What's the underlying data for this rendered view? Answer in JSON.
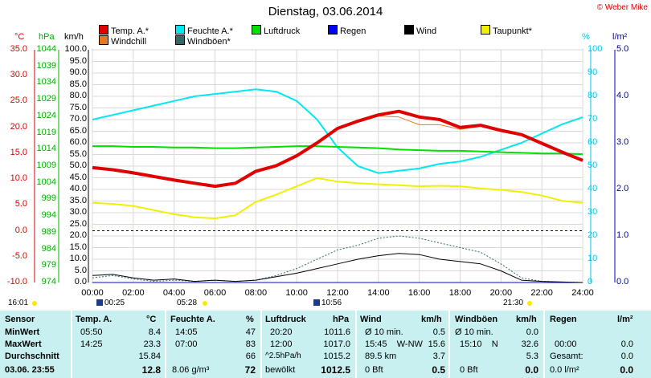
{
  "header": {
    "title": "Dienstag, 03.06.2014",
    "copyright": "© Weber Mike"
  },
  "legend": [
    {
      "label": "Temp. A.*",
      "color": "#e00000"
    },
    {
      "label": "Feuchte A.*",
      "color": "#00e8f0"
    },
    {
      "label": "Luftdruck",
      "color": "#00e000"
    },
    {
      "label": "Regen",
      "color": "#0000ff"
    },
    {
      "label": "Wind",
      "color": "#000000"
    },
    {
      "label": "Taupunkt*",
      "color": "#f0f000"
    },
    {
      "label": "Windchill",
      "color": "#e87820"
    },
    {
      "label": "Windböen*",
      "color": "#306868"
    }
  ],
  "units": {
    "c": "°C",
    "hpa": "hPa",
    "kmh": "km/h",
    "pct": "%",
    "lm": "l/m²"
  },
  "axes": {
    "celsius": [
      "35.0",
      "30.0",
      "25.0",
      "20.0",
      "15.0",
      "10.0",
      "5.0",
      "0.0",
      "-5.0",
      "-10.0"
    ],
    "hpa": [
      "1044",
      "1039",
      "1034",
      "1029",
      "1024",
      "1019",
      "1014",
      "1009",
      "1004",
      "999",
      "994",
      "989",
      "984",
      "979",
      "974"
    ],
    "kmh": [
      "100.0",
      "95.0",
      "90.0",
      "85.0",
      "80.0",
      "75.0",
      "70.0",
      "65.0",
      "60.0",
      "55.0",
      "50.0",
      "45.0",
      "40.0",
      "35.0",
      "30.0",
      "25.0",
      "20.0",
      "15.0",
      "10.0",
      "5.0",
      "0.0"
    ],
    "pct": [
      "100",
      "90",
      "80",
      "70",
      "60",
      "50",
      "40",
      "30",
      "20",
      "10",
      "0"
    ],
    "lm": [
      "5.0",
      "4.0",
      "3.0",
      "2.0",
      "1.0",
      "0.0"
    ],
    "x": [
      "00:00",
      "02:00",
      "04:00",
      "06:00",
      "08:00",
      "10:00",
      "12:00",
      "14:00",
      "16:00",
      "18:00",
      "20:00",
      "22:00",
      "24:00"
    ]
  },
  "sun": {
    "moonset": "16:01",
    "sunrise_icon_time": "00:25",
    "sunrise": "05:28",
    "moonrise": "10:56",
    "sunset": "21:30"
  },
  "chart_data": {
    "type": "line",
    "title": "Dienstag, 03.06.2014",
    "x": [
      0,
      1,
      2,
      3,
      4,
      5,
      6,
      7,
      8,
      9,
      10,
      11,
      12,
      13,
      14,
      15,
      16,
      17,
      18,
      19,
      20,
      21,
      22,
      23,
      24
    ],
    "xlabel": "",
    "xlim": [
      0,
      24
    ],
    "series": [
      {
        "name": "Temp. A.*",
        "axis": "celsius",
        "values": [
          12.2,
          11.8,
          11.2,
          10.5,
          9.8,
          9.2,
          8.6,
          9.2,
          11.5,
          12.6,
          14.5,
          17.0,
          19.8,
          21.2,
          22.4,
          23.1,
          22.0,
          21.5,
          20.0,
          20.4,
          19.4,
          18.6,
          16.9,
          15.2,
          13.6
        ]
      },
      {
        "name": "Windchill",
        "axis": "celsius",
        "values": [
          12.2,
          11.8,
          11.2,
          10.5,
          9.8,
          9.2,
          8.6,
          9.2,
          11.5,
          12.6,
          14.5,
          17.0,
          19.6,
          21.0,
          22.2,
          22.0,
          20.5,
          20.5,
          19.6,
          20.2,
          19.3,
          18.5,
          16.9,
          15.2,
          13.6
        ]
      },
      {
        "name": "Taupunkt*",
        "axis": "celsius",
        "values": [
          5.4,
          5.2,
          4.8,
          4.0,
          3.2,
          2.6,
          2.4,
          3.0,
          5.6,
          7.0,
          8.6,
          10.2,
          9.5,
          9.2,
          9.0,
          8.8,
          8.6,
          8.7,
          8.6,
          8.2,
          7.9,
          7.5,
          6.8,
          5.8,
          5.4
        ]
      },
      {
        "name": "Feuchte A.*",
        "axis": "pct",
        "values": [
          70,
          72,
          74,
          76,
          78,
          80,
          81,
          82,
          83,
          82,
          78,
          70,
          58,
          50,
          47,
          48,
          49,
          51,
          52,
          54,
          57,
          60,
          64,
          68,
          71
        ]
      },
      {
        "name": "Luftdruck",
        "axis": "hpa",
        "values": [
          1015.0,
          1015.0,
          1014.8,
          1014.8,
          1014.6,
          1014.6,
          1014.4,
          1014.4,
          1014.6,
          1014.8,
          1015.0,
          1015.0,
          1014.8,
          1014.6,
          1014.4,
          1014.0,
          1013.8,
          1013.6,
          1013.6,
          1013.4,
          1013.2,
          1013.0,
          1012.8,
          1012.8,
          1012.6
        ]
      },
      {
        "name": "Wind",
        "axis": "kmh",
        "values": [
          3,
          3.5,
          2,
          1,
          1.5,
          0.5,
          1,
          0.5,
          1,
          2.5,
          4,
          6,
          8,
          10,
          11.5,
          12.5,
          12,
          10,
          9,
          8,
          5,
          1,
          0.5,
          0.2,
          0
        ]
      },
      {
        "name": "Windböen*",
        "axis": "kmh",
        "values": [
          2,
          3,
          1.5,
          0.5,
          1,
          0.5,
          1,
          0.5,
          1,
          3,
          6,
          10,
          14,
          16,
          19,
          20,
          19,
          17,
          15,
          13,
          8,
          2,
          0.5,
          0.2,
          0
        ]
      },
      {
        "name": "Regen",
        "axis": "lm",
        "values": [
          0,
          0,
          0,
          0,
          0,
          0,
          0,
          0,
          0,
          0,
          0,
          0,
          0,
          0,
          0,
          0,
          0,
          0,
          0,
          0,
          0,
          0,
          0,
          0,
          0
        ]
      }
    ],
    "axis_ranges": {
      "celsius": [
        -10,
        35
      ],
      "hpa": [
        974,
        1044
      ],
      "kmh": [
        0,
        100
      ],
      "pct": [
        0,
        100
      ],
      "lm": [
        0,
        5
      ]
    },
    "grid": true,
    "legend": "top"
  },
  "table": {
    "sensor": {
      "header": "Sensor",
      "rows": [
        "MinWert",
        "MaxWert",
        "Durchschnitt"
      ],
      "footer": "03.06. 23:55"
    },
    "temp": {
      "header": "Temp. A.",
      "unit": "°C",
      "rows": [
        [
          "05:50",
          "8.4"
        ],
        [
          "14:25",
          "23.3"
        ],
        [
          "",
          "15.84"
        ]
      ],
      "footer": "12.8"
    },
    "feuchte": {
      "header": "Feuchte A.",
      "unit": "%",
      "rows": [
        [
          "14:05",
          "47"
        ],
        [
          "07:00",
          "83"
        ],
        [
          "",
          "66"
        ]
      ],
      "footer_label": "8.06 g/m³",
      "footer": "72"
    },
    "luftdruck": {
      "header": "Luftdruck",
      "unit": "hPa",
      "rows": [
        [
          "20:20",
          "1011.6"
        ],
        [
          "12:00",
          "1017.0"
        ],
        [
          "^2.5hPa/h",
          "1015.2"
        ]
      ],
      "footer_label": "bewölkt",
      "footer": "1012.5"
    },
    "wind": {
      "header": "Wind",
      "unit": "km/h",
      "rows": [
        [
          "Ø 10 min.",
          "0.5"
        ],
        [
          "15:45    W-NW",
          "15.6"
        ],
        [
          "89.5 km",
          "3.7"
        ]
      ],
      "footer_label": "0 Bft",
      "footer": "0.5"
    },
    "windboeen": {
      "header": "Windböen",
      "unit": "km/h",
      "rows": [
        [
          "Ø 10 min.",
          "0.0"
        ],
        [
          "15:10    N",
          "32.6"
        ],
        [
          "",
          "5.3"
        ]
      ],
      "footer_label": "0 Bft",
      "footer": "0.0"
    },
    "regen": {
      "header": "Regen",
      "unit": "l/m²",
      "rows": [
        [
          "",
          ""
        ],
        [
          "00:00",
          "0.0"
        ],
        [
          "Gesamt:",
          "0.0"
        ]
      ],
      "footer_label": "0.0 l/m²",
      "footer": "0.0"
    }
  }
}
